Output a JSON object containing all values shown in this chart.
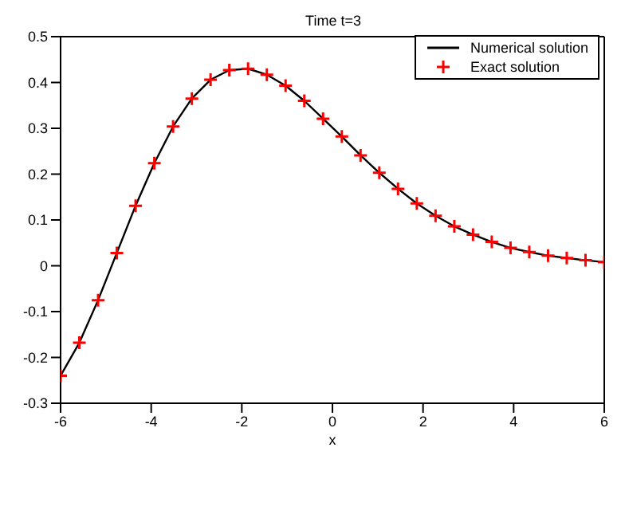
{
  "chart_data": {
    "type": "line",
    "title": "Time t=3",
    "xlabel": "x",
    "xlim": [
      -6,
      6
    ],
    "ylim": [
      -0.3,
      0.5
    ],
    "xticks": [
      -6,
      -4,
      -2,
      0,
      2,
      4,
      6
    ],
    "yticks": [
      -0.3,
      -0.2,
      -0.1,
      0,
      0.1,
      0.2,
      0.3,
      0.4,
      0.5
    ],
    "grid": false,
    "legend": "top right",
    "x": [
      -6,
      -5.586,
      -5.172,
      -4.759,
      -4.345,
      -3.931,
      -3.517,
      -3.103,
      -2.69,
      -2.276,
      -1.862,
      -1.448,
      -1.034,
      -0.621,
      -0.207,
      0.207,
      0.621,
      1.034,
      1.448,
      1.862,
      2.276,
      2.69,
      3.103,
      3.517,
      3.931,
      4.345,
      4.759,
      5.172,
      5.586,
      6
    ],
    "series": [
      {
        "name": "Numerical solution",
        "color": "#000000",
        "marker": "none",
        "line_style": "solid",
        "values": [
          -0.24,
          -0.168,
          -0.075,
          0.028,
          0.131,
          0.224,
          0.304,
          0.365,
          0.406,
          0.427,
          0.43,
          0.417,
          0.393,
          0.36,
          0.321,
          0.282,
          0.241,
          0.203,
          0.168,
          0.136,
          0.109,
          0.086,
          0.068,
          0.052,
          0.039,
          0.03,
          0.022,
          0.017,
          0.012,
          0.008
        ]
      },
      {
        "name": "Exact solution",
        "type": "scatter",
        "color": "#ff0000",
        "marker": "cross",
        "values": [
          -0.24,
          -0.168,
          -0.075,
          0.028,
          0.131,
          0.224,
          0.304,
          0.365,
          0.406,
          0.427,
          0.43,
          0.417,
          0.393,
          0.36,
          0.321,
          0.282,
          0.241,
          0.203,
          0.168,
          0.136,
          0.109,
          0.086,
          0.068,
          0.052,
          0.039,
          0.03,
          0.022,
          0.017,
          0.012,
          0.008
        ]
      }
    ]
  }
}
